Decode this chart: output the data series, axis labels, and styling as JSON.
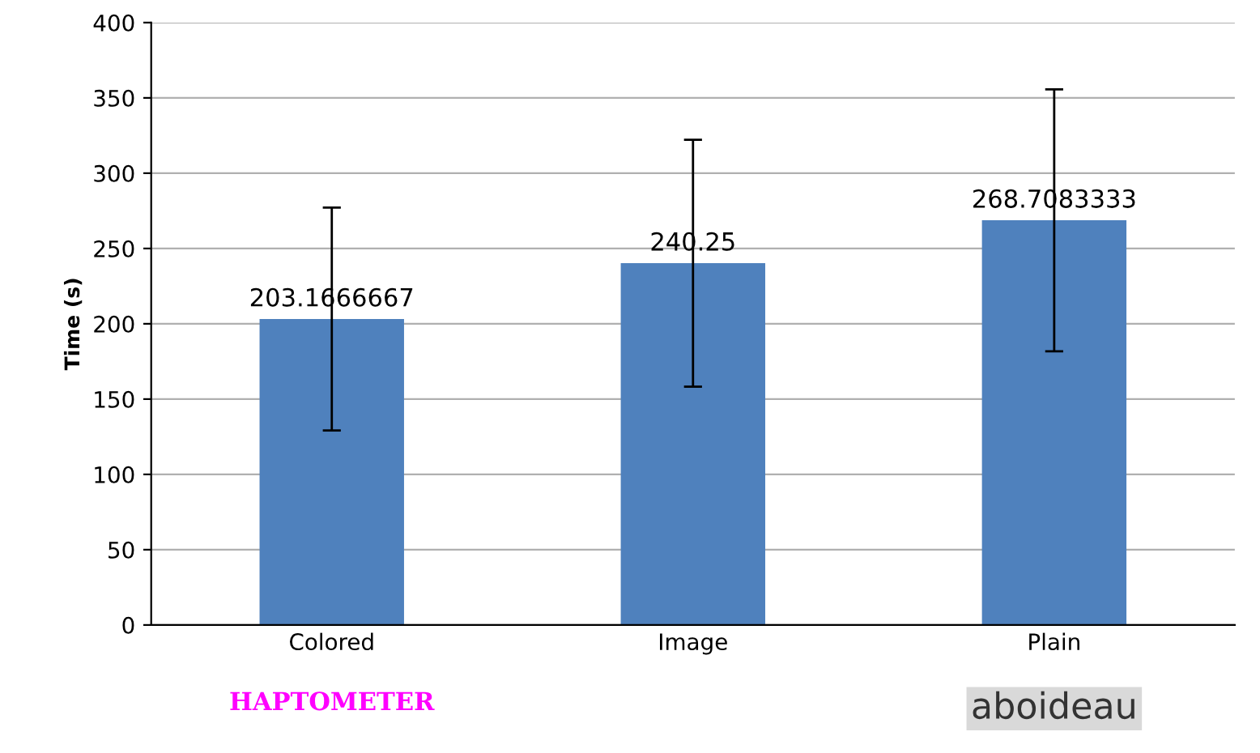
{
  "chart_data": {
    "type": "bar",
    "ylabel": "Time (s)",
    "categories": [
      "Colored",
      "Image",
      "Plain"
    ],
    "values": [
      203.1666667,
      240.25,
      268.7083333
    ],
    "errors": [
      74,
      82,
      87
    ],
    "color": "#4f81bd",
    "data_labels": true,
    "ylim": [
      0,
      400
    ],
    "yticks": [
      0,
      50,
      100,
      150,
      200,
      250,
      300,
      350,
      400
    ],
    "grid": "y",
    "annotations": [
      "HAPTOMETER",
      "aboideau"
    ]
  }
}
